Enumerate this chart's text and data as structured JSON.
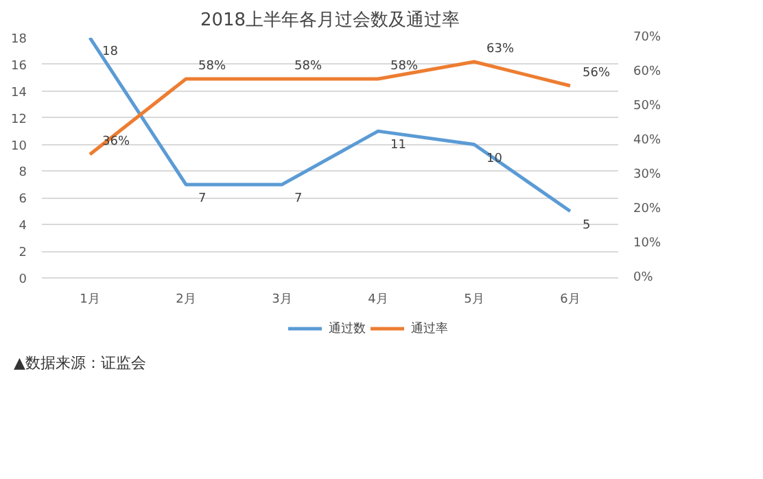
{
  "chart_data": {
    "type": "line",
    "title": "2018上半年各月过会数及通过率",
    "categories": [
      "1月",
      "2月",
      "3月",
      "4月",
      "5月",
      "6月"
    ],
    "series": [
      {
        "name": "通过数",
        "color": "#5b9bd5",
        "values": [
          18,
          7,
          7,
          11,
          10,
          5
        ],
        "value_labels": [
          "18",
          "7",
          "7",
          "11",
          "10",
          "5"
        ]
      },
      {
        "name": "通过率",
        "color": "#ed7d31",
        "axis": "y2",
        "values": [
          36,
          58,
          58,
          58,
          63,
          56
        ],
        "value_labels": [
          "36%",
          "58%",
          "58%",
          "58%",
          "63%",
          "56%"
        ]
      }
    ],
    "ylim": [
      0,
      18
    ],
    "yticks": [
      0,
      2,
      4,
      6,
      8,
      10,
      12,
      14,
      16,
      18
    ],
    "y2lim": [
      0,
      70
    ],
    "y2ticks": [
      {
        "value": 0,
        "label": "0%"
      },
      {
        "value": 10,
        "label": "10%"
      },
      {
        "value": 20,
        "label": "20%"
      },
      {
        "value": 30,
        "label": "30%"
      },
      {
        "value": 40,
        "label": "40%"
      },
      {
        "value": 50,
        "label": "50%"
      },
      {
        "value": 60,
        "label": "60%"
      },
      {
        "value": 70,
        "label": "70%"
      }
    ],
    "grid": "y",
    "legend": "bottom",
    "marker": "none",
    "line_style": "solid",
    "annotations": [
      "▲数据来源：证监会"
    ]
  }
}
